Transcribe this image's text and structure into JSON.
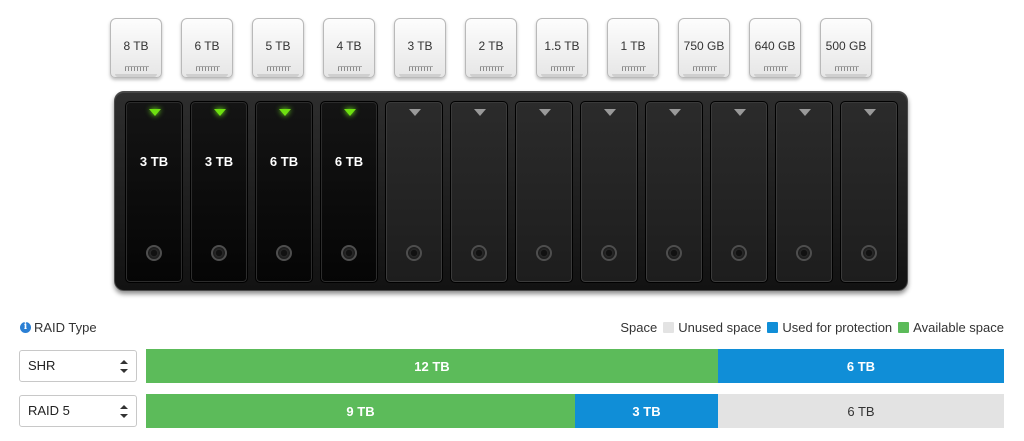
{
  "disk_picker": {
    "disks": [
      "8 TB",
      "6 TB",
      "5 TB",
      "4 TB",
      "3 TB",
      "2 TB",
      "1.5 TB",
      "1 TB",
      "750 GB",
      "640 GB",
      "500 GB"
    ]
  },
  "nas": {
    "bays": [
      {
        "size": "3 TB",
        "filled": true
      },
      {
        "size": "3 TB",
        "filled": true
      },
      {
        "size": "6 TB",
        "filled": true
      },
      {
        "size": "6 TB",
        "filled": true
      },
      {
        "size": "",
        "filled": false
      },
      {
        "size": "",
        "filled": false
      },
      {
        "size": "",
        "filled": false
      },
      {
        "size": "",
        "filled": false
      },
      {
        "size": "",
        "filled": false
      },
      {
        "size": "",
        "filled": false
      },
      {
        "size": "",
        "filled": false
      },
      {
        "size": "",
        "filled": false
      }
    ]
  },
  "raid_section": {
    "title": "RAID Type",
    "info_icon": "info-icon"
  },
  "legend": {
    "label": "Space",
    "items": [
      {
        "label": "Unused space",
        "color": "#e3e3e3"
      },
      {
        "label": "Used for protection",
        "color": "#108ed7"
      },
      {
        "label": "Available space",
        "color": "#5cbb5a"
      }
    ]
  },
  "raid_rows": [
    {
      "selected": "SHR",
      "segments": [
        {
          "type": "available",
          "label": "12 TB",
          "tb": 12
        },
        {
          "type": "protection",
          "label": "6 TB",
          "tb": 6
        }
      ]
    },
    {
      "selected": "RAID 5",
      "segments": [
        {
          "type": "available",
          "label": "9 TB",
          "tb": 9
        },
        {
          "type": "protection",
          "label": "3 TB",
          "tb": 3
        },
        {
          "type": "unused",
          "label": "6 TB",
          "tb": 6
        }
      ]
    }
  ],
  "colors": {
    "available": "#5cbb5a",
    "protection": "#108ed7",
    "unused": "#e3e3e3",
    "led_active": "#6ee010"
  }
}
